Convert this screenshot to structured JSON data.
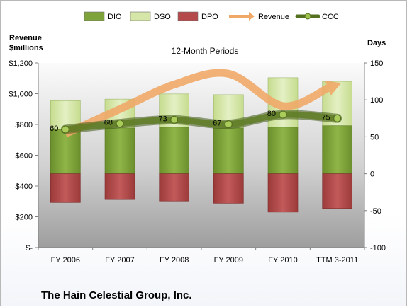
{
  "company": "The Hain Celestial Group, Inc.",
  "chart_data": {
    "type": "bar",
    "title": "12-Month Periods",
    "y_left_label_line1": "Revenue",
    "y_left_label_line2": "$millions",
    "y_right_label": "Days",
    "categories": [
      "FY 2006",
      "FY 2007",
      "FY 2008",
      "FY 2009",
      "FY 2010",
      "TTM 3-2011"
    ],
    "left_axis": {
      "min": 0,
      "max": 1200,
      "step": 200,
      "tick_labels": [
        "$-",
        "$200",
        "$400",
        "$600",
        "$800",
        "$1,000",
        "$1,200"
      ]
    },
    "right_axis": {
      "min": -100,
      "max": 150,
      "step": 50,
      "tick_labels": [
        "-100",
        "-50",
        "0",
        "50",
        "100",
        "150"
      ]
    },
    "legend": {
      "position": "top",
      "items": [
        {
          "name": "DIO",
          "kind": "bar",
          "color": "#7ea33a"
        },
        {
          "name": "DSO",
          "kind": "bar",
          "color": "#d5e6a8"
        },
        {
          "name": "DPO",
          "kind": "bar",
          "color": "#b54a4a"
        },
        {
          "name": "Revenue",
          "kind": "arrow",
          "color": "#f0a868"
        },
        {
          "name": "CCC",
          "kind": "line",
          "color": "#55701f"
        }
      ]
    },
    "series": [
      {
        "name": "DIO",
        "axis": "right",
        "values": [
          60,
          62,
          63,
          62,
          63,
          65
        ]
      },
      {
        "name": "DSO",
        "axis": "right",
        "values": [
          39,
          39,
          45,
          45,
          67,
          60
        ]
      },
      {
        "name": "DPO",
        "axis": "right",
        "values": [
          -39,
          -35,
          -37,
          -40,
          -52,
          -47
        ]
      },
      {
        "name": "Revenue",
        "axis": "left",
        "values": [
          740,
          900,
          1060,
          1130,
          920,
          1060
        ]
      },
      {
        "name": "CCC",
        "axis": "right",
        "values": [
          60,
          68,
          73,
          67,
          80,
          75
        ]
      }
    ],
    "data_labels": [
      "60",
      "68",
      "73",
      "67",
      "80",
      "75"
    ],
    "grid": false
  }
}
